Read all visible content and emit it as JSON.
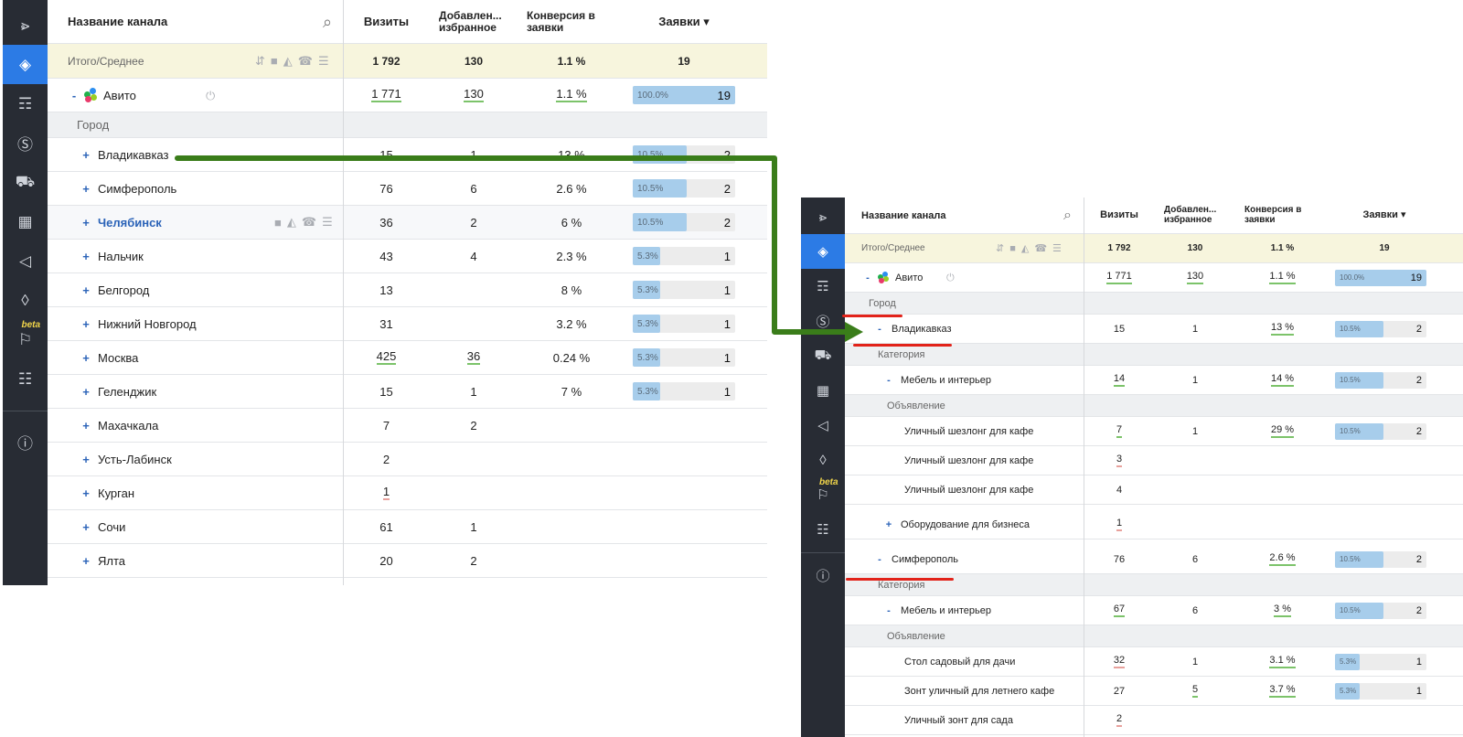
{
  "top": {
    "columns": {
      "name": "Название канала",
      "visits": "Визиты",
      "fav": "Добавлен...\nизбранное",
      "conv": "Конверсия в\nзаявки",
      "req": "Заявки ▾"
    },
    "total": {
      "label": "Итого/Среднее",
      "visits": "1 792",
      "fav": "130",
      "conv": "1.1 %",
      "req": "19"
    },
    "source": {
      "sign": "-",
      "label": "Авито",
      "visits": "1 771",
      "fav": "130",
      "conv": "1.1 %",
      "req_pct": "100.0%",
      "req_val": "19",
      "req_frac": 1.0
    },
    "group_label": "Город",
    "rows": [
      {
        "sign": "+",
        "label": "Владикавказ",
        "visits": "15",
        "fav": "1",
        "conv": "13 %",
        "req_pct": "10.5%",
        "req_val": "2",
        "req_frac": 0.105
      },
      {
        "sign": "+",
        "label": "Симферополь",
        "visits": "76",
        "fav": "6",
        "conv": "2.6 %",
        "req_pct": "10.5%",
        "req_val": "2",
        "req_frac": 0.105
      },
      {
        "sign": "+",
        "label": "Челябинск",
        "visits": "36",
        "fav": "2",
        "conv": "6 %",
        "req_pct": "10.5%",
        "req_val": "2",
        "req_frac": 0.105
      },
      {
        "sign": "+",
        "label": "Нальчик",
        "visits": "43",
        "fav": "4",
        "conv": "2.3 %",
        "req_pct": "5.3%",
        "req_val": "1",
        "req_frac": 0.053
      },
      {
        "sign": "+",
        "label": "Белгород",
        "visits": "13",
        "fav": "",
        "conv": "8 %",
        "req_pct": "5.3%",
        "req_val": "1",
        "req_frac": 0.053
      },
      {
        "sign": "+",
        "label": "Нижний Новгород",
        "visits": "31",
        "fav": "",
        "conv": "3.2 %",
        "req_pct": "5.3%",
        "req_val": "1",
        "req_frac": 0.053
      },
      {
        "sign": "+",
        "label": "Москва",
        "visits": "425",
        "fav": "36",
        "conv": "0.24 %",
        "req_pct": "5.3%",
        "req_val": "1",
        "req_frac": 0.053
      },
      {
        "sign": "+",
        "label": "Геленджик",
        "visits": "15",
        "fav": "1",
        "conv": "7 %",
        "req_pct": "5.3%",
        "req_val": "1",
        "req_frac": 0.053
      },
      {
        "sign": "+",
        "label": "Махачкала",
        "visits": "7",
        "fav": "2",
        "conv": "",
        "req_pct": "",
        "req_val": "",
        "req_frac": 0
      },
      {
        "sign": "+",
        "label": "Усть-Лабинск",
        "visits": "2",
        "fav": "",
        "conv": "",
        "req_pct": "",
        "req_val": "",
        "req_frac": 0
      },
      {
        "sign": "+",
        "label": "Курган",
        "visits": "1",
        "fav": "",
        "conv": "",
        "req_pct": "",
        "req_val": "",
        "req_frac": 0
      },
      {
        "sign": "+",
        "label": "Сочи",
        "visits": "61",
        "fav": "1",
        "conv": "",
        "req_pct": "",
        "req_val": "",
        "req_frac": 0
      },
      {
        "sign": "+",
        "label": "Ялта",
        "visits": "20",
        "fav": "2",
        "conv": "",
        "req_pct": "",
        "req_val": "",
        "req_frac": 0
      }
    ]
  },
  "bottom": {
    "columns": {
      "name": "Название канала",
      "visits": "Визиты",
      "fav": "Добавлен...\nизбранное",
      "conv": "Конверсия в\nзаявки",
      "req": "Заявки ▾"
    },
    "total": {
      "label": "Итого/Среднее",
      "visits": "1 792",
      "fav": "130",
      "conv": "1.1 %",
      "req": "19"
    },
    "source": {
      "sign": "-",
      "label": "Авито",
      "visits": "1 771",
      "fav": "130",
      "conv": "1.1 %",
      "req_pct": "100.0%",
      "req_val": "19",
      "req_frac": 1.0
    },
    "rows": [
      {
        "kind": "group",
        "label": "Город"
      },
      {
        "kind": "item",
        "sign": "-",
        "label": "Владикавказ",
        "visits": "15",
        "fav": "1",
        "conv": "13 %",
        "req_pct": "10.5%",
        "req_val": "2",
        "req_frac": 0.105
      },
      {
        "kind": "group",
        "label": "Категория"
      },
      {
        "kind": "item",
        "sign": "-",
        "label": "Мебель и интерьер",
        "visits": "14",
        "fav": "1",
        "conv": "14 %",
        "req_pct": "10.5%",
        "req_val": "2",
        "req_frac": 0.105
      },
      {
        "kind": "group",
        "label": "Объявление"
      },
      {
        "kind": "item",
        "sign": "",
        "label": "Уличный шезлонг для кафе",
        "visits": "7",
        "fav": "1",
        "conv": "29 %",
        "req_pct": "10.5%",
        "req_val": "2",
        "req_frac": 0.105
      },
      {
        "kind": "item",
        "sign": "",
        "label": "Уличный шезлонг для кафе",
        "visits": "3",
        "fav": "",
        "conv": "",
        "req_pct": "",
        "req_val": "",
        "req_frac": 0
      },
      {
        "kind": "item",
        "sign": "",
        "label": "Уличный шезлонг для кафе",
        "visits": "4",
        "fav": "",
        "conv": "",
        "req_pct": "",
        "req_val": "",
        "req_frac": 0
      },
      {
        "kind": "item",
        "sign": "+",
        "label": "Оборудование для бизнеса",
        "visits": "1",
        "fav": "",
        "conv": "",
        "req_pct": "",
        "req_val": "",
        "req_frac": 0
      },
      {
        "kind": "item",
        "sign": "-",
        "label": "Симферополь",
        "visits": "76",
        "fav": "6",
        "conv": "2.6 %",
        "req_pct": "10.5%",
        "req_val": "2",
        "req_frac": 0.105
      },
      {
        "kind": "group",
        "label": "Категория"
      },
      {
        "kind": "item",
        "sign": "-",
        "label": "Мебель и интерьер",
        "visits": "67",
        "fav": "6",
        "conv": "3 %",
        "req_pct": "10.5%",
        "req_val": "2",
        "req_frac": 0.105
      },
      {
        "kind": "group",
        "label": "Объявление"
      },
      {
        "kind": "item",
        "sign": "",
        "label": "Стол садовый для дачи",
        "visits": "32",
        "fav": "1",
        "conv": "3.1 %",
        "req_pct": "5.3%",
        "req_val": "1",
        "req_frac": 0.053
      },
      {
        "kind": "item",
        "sign": "",
        "label": "Зонт уличный для летнего кафе",
        "visits": "27",
        "fav": "5",
        "conv": "3.7 %",
        "req_pct": "5.3%",
        "req_val": "1",
        "req_frac": 0.053
      },
      {
        "kind": "item",
        "sign": "",
        "label": "Уличный зонт для сада",
        "visits": "2",
        "fav": "",
        "conv": "",
        "req_pct": "",
        "req_val": "",
        "req_frac": 0
      }
    ]
  },
  "sidebar": {
    "icons": [
      "chart-icon",
      "layers-icon",
      "hierarchy-icon",
      "money-icon",
      "cart-icon",
      "calendar-icon",
      "megaphone-icon",
      "stack-icon",
      "user-chart-icon",
      "team-icon",
      "info-icon"
    ],
    "beta_label": "beta"
  },
  "colors": {
    "sidebar": "#282c34",
    "active": "#2c7be5",
    "total_bg": "#f7f5dd",
    "bar_fill": "#a7cdeb",
    "arrow": "#3a7d1a",
    "mark": "#e2231a"
  }
}
